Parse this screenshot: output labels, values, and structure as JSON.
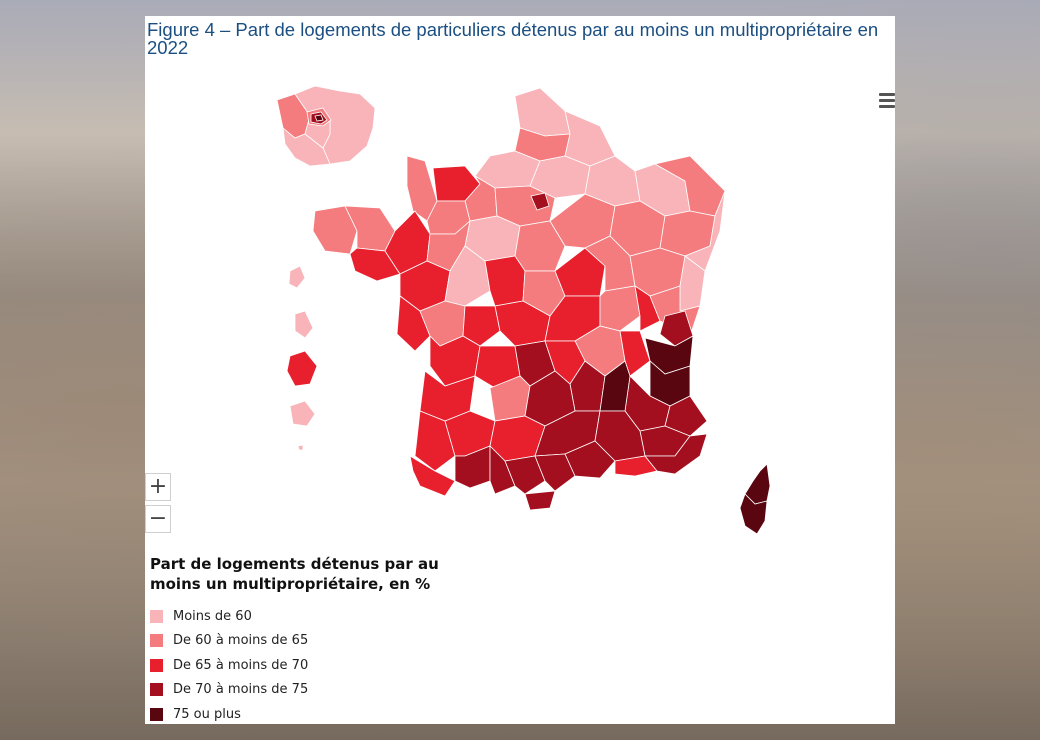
{
  "title": "Figure 4 – Part de logements de particuliers détenus par au moins un multipropriétaire en 2022",
  "controls": {
    "zoom_in": "+",
    "zoom_out": "−",
    "menu_icon": "hamburger-menu-icon"
  },
  "legend": {
    "title": "Part de logements détenus par au moins un multipropriétaire, en %",
    "items": [
      {
        "label": "Moins de 60",
        "color": "#f8b4b8"
      },
      {
        "label": "De 60 à moins de 65",
        "color": "#f47c7e"
      },
      {
        "label": "De 65 à moins de 70",
        "color": "#e8202e"
      },
      {
        "label": "De 70 à moins de 75",
        "color": "#a30f1e"
      },
      {
        "label": "75 ou plus",
        "color": "#5a0610"
      }
    ]
  }
}
